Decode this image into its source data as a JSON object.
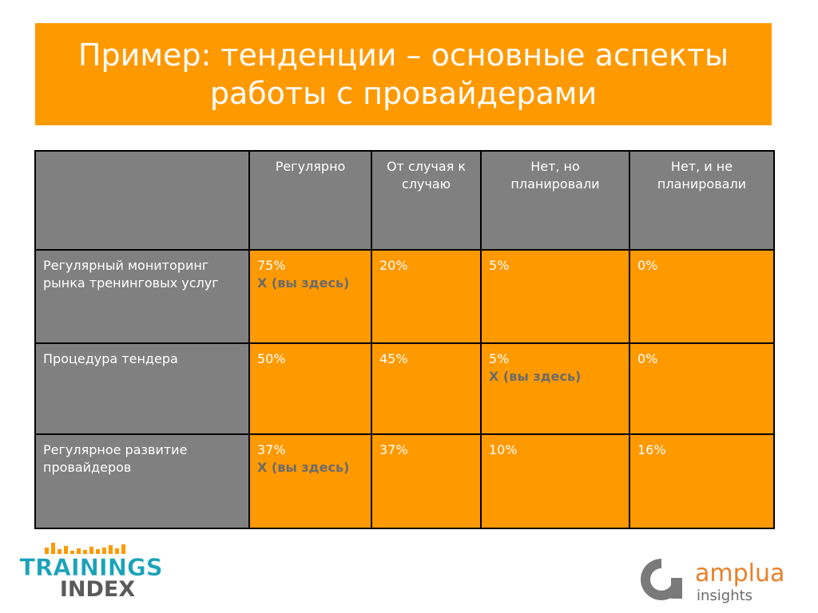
{
  "title": {
    "line1": "Пример: тенденции – основные аспекты",
    "line2": "работы с провайдерами"
  },
  "table": {
    "columns": [
      "",
      "Регулярно",
      "От случая к случаю",
      "Нет, но планировали",
      "Нет, и не планировали"
    ],
    "rows": [
      {
        "label": "Регулярный мониторинг рынка тренинговых услуг",
        "cells": [
          {
            "value": "75%",
            "mark": "X (вы здесь)"
          },
          {
            "value": "20%",
            "mark": ""
          },
          {
            "value": "5%",
            "mark": ""
          },
          {
            "value": "0%",
            "mark": ""
          }
        ]
      },
      {
        "label": "Процедура тендера",
        "cells": [
          {
            "value": "50%",
            "mark": ""
          },
          {
            "value": "45%",
            "mark": ""
          },
          {
            "value": "5%",
            "mark": "X (вы здесь)"
          },
          {
            "value": "0%",
            "mark": ""
          }
        ]
      },
      {
        "label": "Регулярное развитие провайдеров",
        "cells": [
          {
            "value": "37%",
            "mark": "X (вы здесь)"
          },
          {
            "value": "37%",
            "mark": ""
          },
          {
            "value": "10%",
            "mark": ""
          },
          {
            "value": "16%",
            "mark": ""
          }
        ]
      }
    ]
  },
  "logos": {
    "left": {
      "line1": "TRAININGS",
      "line2": "INDEX"
    },
    "right": {
      "name": "amplua",
      "sub": "insights"
    }
  },
  "colors": {
    "accent": "#ff9900",
    "header_gray": "#808080",
    "mark_gray": "#6b6b6b",
    "logo_teal": "#1aa3b8",
    "logo_dark": "#5a5a5a"
  }
}
